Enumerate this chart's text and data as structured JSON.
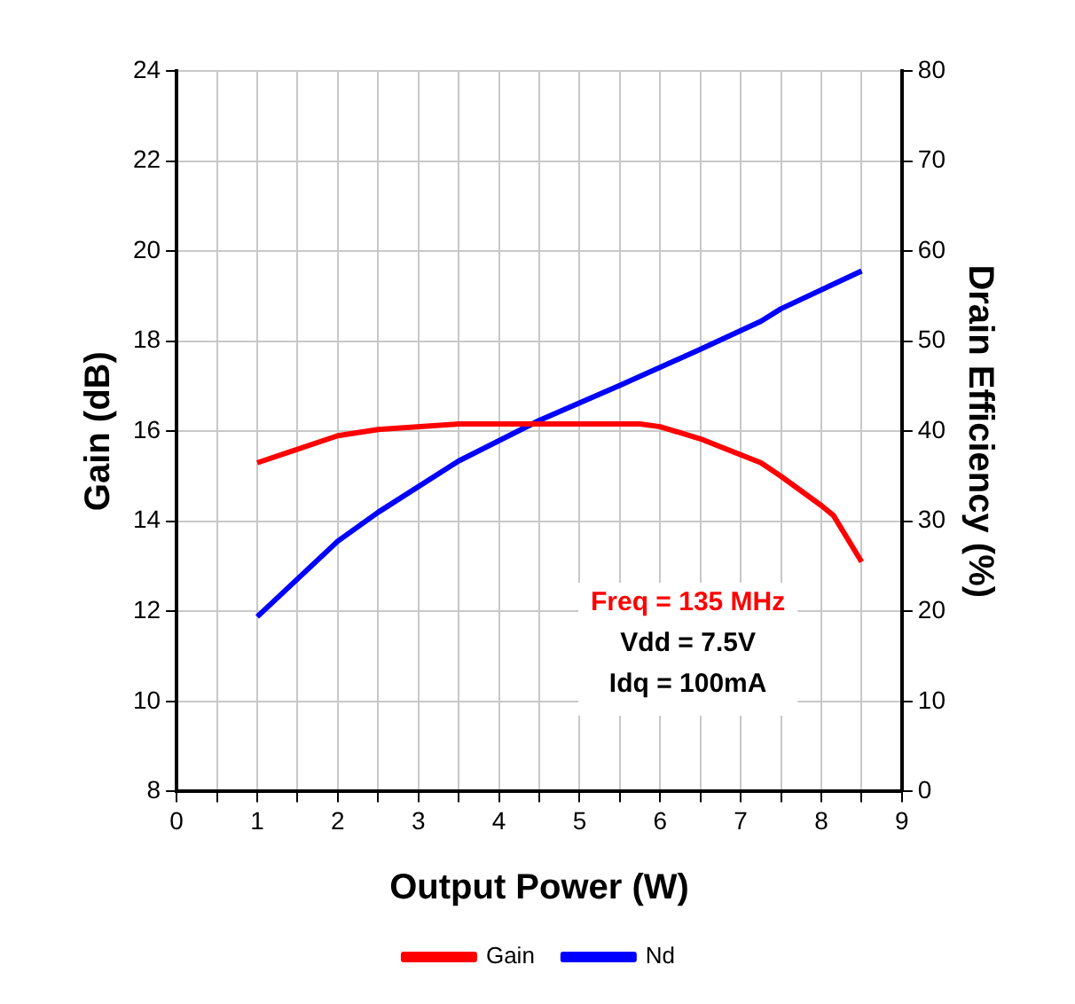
{
  "chart_data": {
    "type": "line",
    "xlabel": "Output Power (W)",
    "ylabel": "Gain (dB)",
    "y2label": "Drain Efficiency (%)",
    "xlim": [
      0,
      9
    ],
    "xticks": [
      0,
      1,
      2,
      3,
      4,
      5,
      6,
      7,
      8,
      9
    ],
    "ylim": [
      8,
      24
    ],
    "yticks": [
      8,
      10,
      12,
      14,
      16,
      18,
      20,
      22,
      24
    ],
    "y2lim": [
      0,
      80
    ],
    "y2ticks": [
      0,
      10,
      20,
      30,
      40,
      50,
      60,
      70,
      80
    ],
    "grid": true,
    "legend": "bottom",
    "marker": "none",
    "line_style": "solid",
    "series": [
      {
        "name": "Gain",
        "color": "#ff0000",
        "x": [
          1,
          2,
          2.5,
          3.5,
          5.75,
          6,
          6.5,
          7.25,
          7.5,
          8,
          8.15,
          8.5
        ],
        "values": [
          15.3,
          15.9,
          16.04,
          16.16,
          16.16,
          16.1,
          15.83,
          15.3,
          15.0,
          14.35,
          14.13,
          13.1
        ]
      },
      {
        "name": "Nd",
        "color": "#0000ff",
        "axis": "y2",
        "x": [
          1,
          2,
          2.5,
          3.5,
          4.5,
          5.5,
          6.5,
          7.25,
          7.5,
          8.5
        ],
        "values": [
          19.4,
          27.8,
          31.0,
          36.7,
          41.2,
          45.1,
          49.1,
          52.2,
          53.6,
          57.8
        ]
      }
    ],
    "annotations": [
      "Freq = 135 MHz",
      "Vdd = 7.5V",
      "Idq = 100mA"
    ]
  }
}
